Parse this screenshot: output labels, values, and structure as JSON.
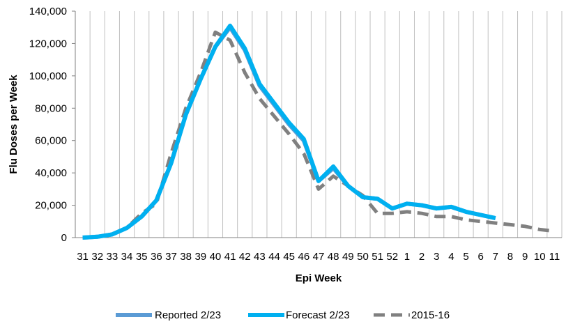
{
  "chart_data": {
    "type": "line",
    "title": "",
    "xlabel": "Epi Week",
    "ylabel": "Flu Doses per Week",
    "ylim": [
      0,
      140000
    ],
    "yticks": [
      0,
      20000,
      40000,
      60000,
      80000,
      100000,
      120000,
      140000
    ],
    "ytick_labels": [
      "0",
      "20,000",
      "40,000",
      "60,000",
      "80,000",
      "100,000",
      "120,000",
      "140,000"
    ],
    "categories": [
      "31",
      "32",
      "33",
      "34",
      "35",
      "36",
      "37",
      "38",
      "39",
      "40",
      "41",
      "42",
      "43",
      "44",
      "45",
      "46",
      "47",
      "48",
      "49",
      "50",
      "51",
      "52",
      "1",
      "2",
      "3",
      "4",
      "5",
      "6",
      "7",
      "8",
      "9",
      "10",
      "11"
    ],
    "grid": "vertical",
    "legend_position": "bottom",
    "series": [
      {
        "name": "Reported 2/23",
        "color": "#5b9bd5",
        "style": "solid",
        "values": [
          0,
          500,
          2000,
          6000,
          13000,
          23000,
          46000,
          76000,
          98000,
          118000,
          130000,
          116000,
          94000,
          82000,
          70000,
          60000,
          35000,
          43000,
          32000,
          25000,
          24000,
          18000,
          21000,
          20000,
          18000,
          19000,
          16000,
          14000,
          12000,
          null,
          null,
          null,
          null
        ]
      },
      {
        "name": "Forecast 2/23",
        "color": "#00b0f0",
        "style": "solid",
        "values": [
          0,
          500,
          2000,
          6000,
          13000,
          23000,
          46000,
          76000,
          98000,
          118000,
          131000,
          117000,
          95000,
          83000,
          71000,
          61000,
          35000,
          44000,
          32000,
          25000,
          24000,
          18000,
          21000,
          20000,
          18000,
          19000,
          16000,
          14000,
          12000,
          null,
          null,
          null,
          null
        ]
      },
      {
        "name": "2015-16",
        "color": "#808080",
        "style": "dashed",
        "values": [
          0,
          500,
          2000,
          6000,
          15000,
          21000,
          52000,
          80000,
          102000,
          127000,
          122000,
          102000,
          86000,
          75000,
          64000,
          52000,
          30000,
          38000,
          32000,
          26000,
          15000,
          15000,
          16000,
          15000,
          13000,
          13000,
          11000,
          10000,
          9000,
          8000,
          7000,
          5000,
          4000
        ]
      }
    ]
  }
}
